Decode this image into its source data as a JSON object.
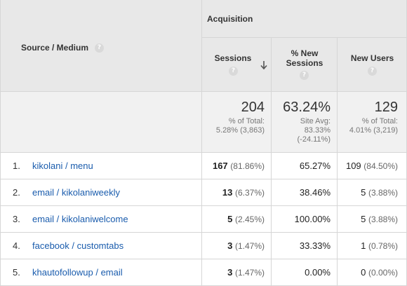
{
  "header": {
    "dimension_label": "Source / Medium",
    "group_label": "Acquisition",
    "columns": [
      {
        "label_line1": "Sessions",
        "label_line2": ""
      },
      {
        "label_line1": "% New",
        "label_line2": "Sessions"
      },
      {
        "label_line1": "New Users",
        "label_line2": ""
      }
    ],
    "help_glyph": "?",
    "sort_icon": "sort-descending-arrow-icon"
  },
  "totals": {
    "sessions": {
      "value": "204",
      "line1": "% of Total:",
      "line2": "5.28% (3,863)"
    },
    "new_sessions": {
      "value": "63.24%",
      "line1": "Site Avg:",
      "line2": "83.33%",
      "line3": "(-24.11%)"
    },
    "new_users": {
      "value": "129",
      "line1": "% of Total:",
      "line2": "4.01% (3,219)"
    }
  },
  "rows": [
    {
      "index": "1.",
      "source": "kikolani / menu",
      "sessions": "167",
      "sessions_pct": "(81.86%)",
      "new_sessions": "65.27%",
      "new_users": "109",
      "new_users_pct": "(84.50%)"
    },
    {
      "index": "2.",
      "source": "email / kikolaniweekly",
      "sessions": "13",
      "sessions_pct": "(6.37%)",
      "new_sessions": "38.46%",
      "new_users": "5",
      "new_users_pct": "(3.88%)"
    },
    {
      "index": "3.",
      "source": "email / kikolaniwelcome",
      "sessions": "5",
      "sessions_pct": "(2.45%)",
      "new_sessions": "100.00%",
      "new_users": "5",
      "new_users_pct": "(3.88%)"
    },
    {
      "index": "4.",
      "source": "facebook / customtabs",
      "sessions": "3",
      "sessions_pct": "(1.47%)",
      "new_sessions": "33.33%",
      "new_users": "1",
      "new_users_pct": "(0.78%)"
    },
    {
      "index": "5.",
      "source": "khautofollowup / email",
      "sessions": "3",
      "sessions_pct": "(1.47%)",
      "new_sessions": "0.00%",
      "new_users": "0",
      "new_users_pct": "(0.00%)"
    }
  ],
  "colors": {
    "link": "#1a5cad",
    "header_bg": "#e8e8e8",
    "totals_bg": "#f1f1f1",
    "border": "#d6d6d6"
  }
}
